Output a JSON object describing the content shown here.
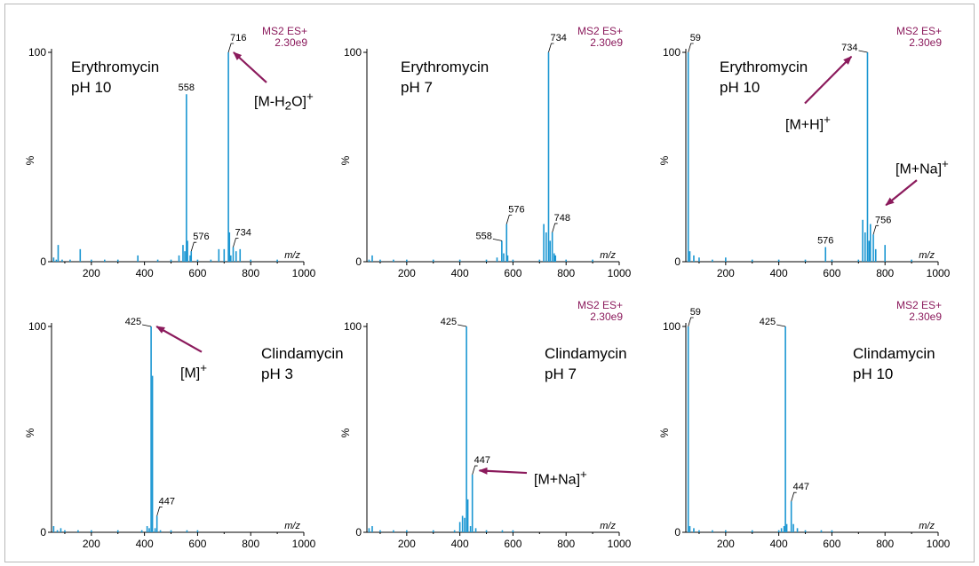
{
  "colors": {
    "spectrum": "#1a96d2",
    "annotation": "#8b1a5c",
    "axis": "#000000"
  },
  "chart_data": [
    {
      "type": "line",
      "title": [
        "Erythromycin",
        "pH 10"
      ],
      "mode_label": "MS2 ES+",
      "intensity_label": "2.30e9",
      "xlabel": "m/z",
      "ylabel": "%",
      "xlim": [
        50,
        1000
      ],
      "ylim": [
        0,
        100
      ],
      "xticks": [
        200,
        400,
        600,
        800,
        1000
      ],
      "yticks": [
        0,
        100
      ],
      "peaks": [
        [
          58,
          2
        ],
        [
          68,
          1
        ],
        [
          75,
          8
        ],
        [
          90,
          1
        ],
        [
          120,
          1
        ],
        [
          158,
          6
        ],
        [
          200,
          1
        ],
        [
          250,
          1
        ],
        [
          300,
          1
        ],
        [
          375,
          3
        ],
        [
          450,
          1
        ],
        [
          500,
          1
        ],
        [
          530,
          3
        ],
        [
          545,
          8
        ],
        [
          552,
          5
        ],
        [
          558,
          80
        ],
        [
          562,
          10
        ],
        [
          572,
          3
        ],
        [
          576,
          5
        ],
        [
          600,
          1
        ],
        [
          650,
          1
        ],
        [
          680,
          6
        ],
        [
          700,
          6
        ],
        [
          716,
          100
        ],
        [
          720,
          14
        ],
        [
          725,
          3
        ],
        [
          734,
          7
        ],
        [
          745,
          5
        ],
        [
          760,
          6
        ],
        [
          800,
          1
        ],
        [
          900,
          1
        ]
      ],
      "peak_labels": [
        {
          "x": 716,
          "y": 100,
          "text": "716",
          "leader": "right"
        },
        {
          "x": 558,
          "y": 80,
          "text": "558",
          "leader": "none"
        },
        {
          "x": 576,
          "y": 5,
          "text": "576",
          "leader": "right"
        },
        {
          "x": 734,
          "y": 7,
          "text": "734",
          "leader": "right"
        }
      ],
      "annotations": [
        {
          "html": "[M-H<sub>2</sub>O]<sup>+</sup>",
          "arrow_to": [
            722,
            100
          ],
          "anchor": "right",
          "anchor_y": 78
        }
      ]
    },
    {
      "type": "line",
      "title": [
        "Erythromycin",
        "pH 7"
      ],
      "mode_label": "MS2 ES+",
      "intensity_label": "2.30e9",
      "xlabel": "m/z",
      "ylabel": "%",
      "xlim": [
        50,
        1000
      ],
      "ylim": [
        0,
        100
      ],
      "xticks": [
        200,
        400,
        600,
        800,
        1000
      ],
      "yticks": [
        0,
        100
      ],
      "peaks": [
        [
          58,
          1
        ],
        [
          70,
          3
        ],
        [
          100,
          1
        ],
        [
          150,
          1
        ],
        [
          200,
          1
        ],
        [
          300,
          1
        ],
        [
          400,
          1
        ],
        [
          500,
          1
        ],
        [
          540,
          2
        ],
        [
          558,
          10
        ],
        [
          565,
          4
        ],
        [
          576,
          18
        ],
        [
          580,
          3
        ],
        [
          600,
          1
        ],
        [
          700,
          1
        ],
        [
          716,
          18
        ],
        [
          725,
          14
        ],
        [
          734,
          100
        ],
        [
          740,
          10
        ],
        [
          748,
          14
        ],
        [
          755,
          4
        ],
        [
          760,
          3
        ],
        [
          800,
          1
        ],
        [
          900,
          1
        ]
      ],
      "peak_labels": [
        {
          "x": 734,
          "y": 100,
          "text": "734",
          "leader": "right"
        },
        {
          "x": 576,
          "y": 18,
          "text": "576",
          "leader": "right"
        },
        {
          "x": 558,
          "y": 10,
          "text": "558",
          "leader": "left"
        },
        {
          "x": 748,
          "y": 14,
          "text": "748",
          "leader": "right"
        }
      ],
      "annotations": []
    },
    {
      "type": "line",
      "title": [
        "Erythromycin",
        "pH 10"
      ],
      "mode_label": "MS2 ES+",
      "intensity_label": "2.30e9",
      "xlabel": "m/z",
      "ylabel": "%",
      "xlim": [
        50,
        1000
      ],
      "ylim": [
        0,
        100
      ],
      "xticks": [
        200,
        400,
        600,
        800,
        1000
      ],
      "yticks": [
        0,
        100
      ],
      "peaks": [
        [
          59,
          100
        ],
        [
          65,
          5
        ],
        [
          80,
          3
        ],
        [
          100,
          2
        ],
        [
          150,
          1
        ],
        [
          200,
          2
        ],
        [
          300,
          1
        ],
        [
          400,
          1
        ],
        [
          500,
          1
        ],
        [
          576,
          7
        ],
        [
          600,
          1
        ],
        [
          700,
          1
        ],
        [
          716,
          20
        ],
        [
          725,
          14
        ],
        [
          734,
          100
        ],
        [
          740,
          10
        ],
        [
          745,
          18
        ],
        [
          756,
          13
        ],
        [
          765,
          6
        ],
        [
          800,
          8
        ],
        [
          900,
          1
        ]
      ],
      "peak_labels": [
        {
          "x": 59,
          "y": 100,
          "text": "59",
          "leader": "right"
        },
        {
          "x": 734,
          "y": 100,
          "text": "734",
          "leader": "left"
        },
        {
          "x": 576,
          "y": 7,
          "text": "576",
          "leader": "none"
        },
        {
          "x": 756,
          "y": 13,
          "text": "756",
          "leader": "right"
        }
      ],
      "annotations": [
        {
          "html": "[M+H]<sup>+</sup>",
          "arrow_to": [
            660,
            98
          ],
          "anchor": "left",
          "anchor_y": 68
        },
        {
          "html": "[M+Na]<sup>+</sup>",
          "arrow_to": [
            790,
            27
          ],
          "anchor": "left",
          "anchor_y": 44
        }
      ]
    },
    {
      "type": "line",
      "title": [
        "Clindamycin",
        "pH 3"
      ],
      "mode_label": "",
      "intensity_label": "",
      "xlabel": "m/z",
      "ylabel": "%",
      "xlim": [
        50,
        1000
      ],
      "ylim": [
        0,
        100
      ],
      "xticks": [
        200,
        400,
        600,
        800,
        1000
      ],
      "yticks": [
        0,
        100
      ],
      "peaks": [
        [
          58,
          3
        ],
        [
          72,
          1
        ],
        [
          85,
          2
        ],
        [
          100,
          1
        ],
        [
          150,
          1
        ],
        [
          200,
          1
        ],
        [
          300,
          1
        ],
        [
          390,
          1
        ],
        [
          410,
          3
        ],
        [
          418,
          2
        ],
        [
          425,
          100
        ],
        [
          430,
          76
        ],
        [
          440,
          2
        ],
        [
          447,
          8
        ],
        [
          460,
          1
        ],
        [
          500,
          1
        ],
        [
          560,
          1
        ],
        [
          600,
          1
        ]
      ],
      "peak_labels": [
        {
          "x": 425,
          "y": 100,
          "text": "425",
          "leader": "left"
        },
        {
          "x": 447,
          "y": 8,
          "text": "447",
          "leader": "right"
        }
      ],
      "annotations": [
        {
          "html": "[M]<sup>+</sup>",
          "arrow_to": [
            432,
            100
          ],
          "anchor": "left",
          "anchor_y": 79
        }
      ]
    },
    {
      "type": "line",
      "title": [
        "Clindamycin",
        "pH 7"
      ],
      "mode_label": "MS2 ES+",
      "intensity_label": "2.30e9",
      "xlabel": "m/z",
      "ylabel": "%",
      "xlim": [
        50,
        1000
      ],
      "ylim": [
        0,
        100
      ],
      "xticks": [
        200,
        400,
        600,
        800,
        1000
      ],
      "yticks": [
        0,
        100
      ],
      "peaks": [
        [
          58,
          2
        ],
        [
          70,
          3
        ],
        [
          100,
          1
        ],
        [
          150,
          1
        ],
        [
          200,
          1
        ],
        [
          300,
          1
        ],
        [
          380,
          1
        ],
        [
          400,
          5
        ],
        [
          410,
          8
        ],
        [
          418,
          7
        ],
        [
          425,
          100
        ],
        [
          430,
          16
        ],
        [
          440,
          3
        ],
        [
          447,
          28
        ],
        [
          460,
          2
        ],
        [
          500,
          1
        ],
        [
          560,
          1
        ],
        [
          600,
          1
        ]
      ],
      "peak_labels": [
        {
          "x": 425,
          "y": 100,
          "text": "425",
          "leader": "left"
        },
        {
          "x": 447,
          "y": 28,
          "text": "447",
          "leader": "right"
        }
      ],
      "annotations": [
        {
          "html": "[M+Na]<sup>+</sup>",
          "arrow_to": [
            460,
            30
          ],
          "anchor": "left",
          "anchor_y": 28
        }
      ]
    },
    {
      "type": "line",
      "title": [
        "Clindamycin",
        "pH 10"
      ],
      "mode_label": "MS2 ES+",
      "intensity_label": "2.30e9",
      "xlabel": "m/z",
      "ylabel": "%",
      "xlim": [
        50,
        1000
      ],
      "ylim": [
        0,
        100
      ],
      "xticks": [
        200,
        400,
        600,
        800,
        1000
      ],
      "yticks": [
        0,
        100
      ],
      "peaks": [
        [
          59,
          100
        ],
        [
          65,
          3
        ],
        [
          80,
          2
        ],
        [
          100,
          1
        ],
        [
          150,
          1
        ],
        [
          200,
          1
        ],
        [
          300,
          1
        ],
        [
          400,
          1
        ],
        [
          410,
          2
        ],
        [
          420,
          3
        ],
        [
          425,
          100
        ],
        [
          430,
          4
        ],
        [
          447,
          15
        ],
        [
          455,
          4
        ],
        [
          470,
          2
        ],
        [
          500,
          1
        ],
        [
          560,
          1
        ],
        [
          600,
          1
        ]
      ],
      "peak_labels": [
        {
          "x": 59,
          "y": 100,
          "text": "59",
          "leader": "right"
        },
        {
          "x": 425,
          "y": 100,
          "text": "425",
          "leader": "left"
        },
        {
          "x": 447,
          "y": 15,
          "text": "447",
          "leader": "right"
        }
      ],
      "annotations": []
    }
  ]
}
